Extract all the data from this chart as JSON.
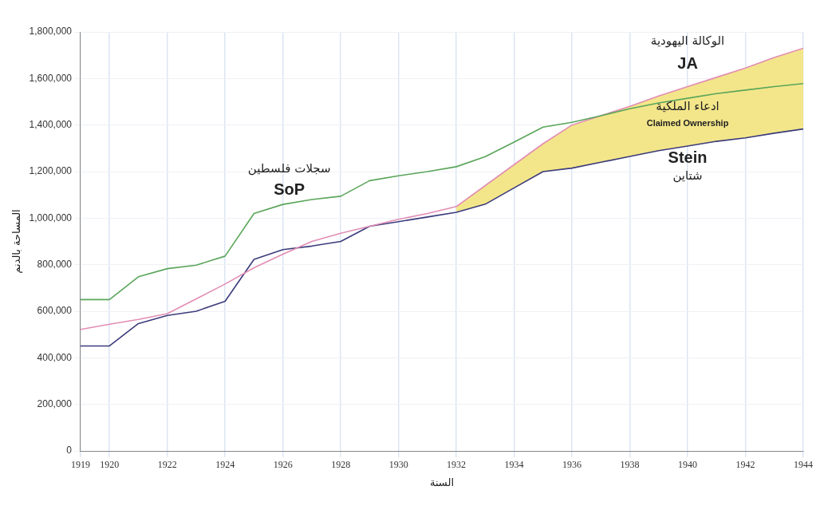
{
  "chart_data": {
    "type": "line",
    "xlabel": "السنة",
    "ylabel": "المساحة بالدنم",
    "x": [
      1919,
      1920,
      1921,
      1922,
      1923,
      1924,
      1925,
      1926,
      1927,
      1928,
      1929,
      1930,
      1931,
      1932,
      1933,
      1934,
      1935,
      1936,
      1937,
      1938,
      1939,
      1940,
      1941,
      1942,
      1943,
      1944
    ],
    "series": [
      {
        "type": "area",
        "name": "ادعاء الملكية\nClaimed Ownership",
        "color": "#f3e68a",
        "values": [
          null,
          null,
          null,
          null,
          null,
          null,
          null,
          null,
          null,
          null,
          null,
          null,
          null,
          1050000,
          1140000,
          1230000,
          1320000,
          1400000,
          1440000,
          1480000,
          1525000,
          1565000,
          1605000,
          1645000,
          1690000,
          1730000
        ]
      },
      {
        "name": "سجلات فلسطين\nSoP",
        "color": "#5aa55a",
        "values": [
          650000,
          650000,
          748000,
          783000,
          798000,
          837000,
          1020000,
          1059000,
          1080000,
          1094000,
          1161000,
          1182000,
          1200000,
          1221000,
          1264000,
          1327000,
          1391000,
          1412000,
          1440000,
          1470000,
          1495000,
          1515000,
          1535000,
          1550000,
          1565000,
          1578000
        ]
      },
      {
        "name": "الوكالة اليهودية\nJA",
        "color": "#e28db4",
        "values": [
          522000,
          544000,
          565000,
          590000,
          653000,
          717000,
          787000,
          845000,
          900000,
          935000,
          965000,
          995000,
          1020000,
          1050000,
          1140000,
          1230000,
          1320000,
          1400000,
          1440000,
          1480000,
          1525000,
          1565000,
          1605000,
          1645000,
          1690000,
          1730000
        ]
      },
      {
        "name": "Stein\nشتاين",
        "color": "#3b3b7c",
        "values": [
          451000,
          451000,
          547000,
          582000,
          600000,
          643000,
          823000,
          865000,
          880000,
          900000,
          965000,
          985000,
          1005000,
          1025000,
          1060000,
          1130000,
          1200000,
          1215000,
          1240000,
          1265000,
          1290000,
          1310000,
          1330000,
          1345000,
          1365000,
          1383000
        ]
      }
    ],
    "xlim": [
      1919,
      1944
    ],
    "xticks": [
      1919,
      1920,
      1922,
      1924,
      1926,
      1928,
      1930,
      1932,
      1934,
      1936,
      1938,
      1940,
      1942,
      1944
    ],
    "ylim": [
      0,
      1800000
    ],
    "yticks": [
      {
        "value": 0,
        "label": "0"
      },
      {
        "value": 200000,
        "label": "200,000"
      },
      {
        "value": 400000,
        "label": "400,000"
      },
      {
        "value": 600000,
        "label": "600,000"
      },
      {
        "value": 800000,
        "label": "800,000"
      },
      {
        "value": 1000000,
        "label": "1,000,000"
      },
      {
        "value": 1200000,
        "label": "1,200,000"
      },
      {
        "value": 1400000,
        "label": "1,400,000"
      },
      {
        "value": 1600000,
        "label": "1,600,000"
      },
      {
        "value": 1800000,
        "label": "1,800,000"
      }
    ],
    "grid": true,
    "legend": false,
    "marker": "none",
    "line_style": "solid"
  }
}
